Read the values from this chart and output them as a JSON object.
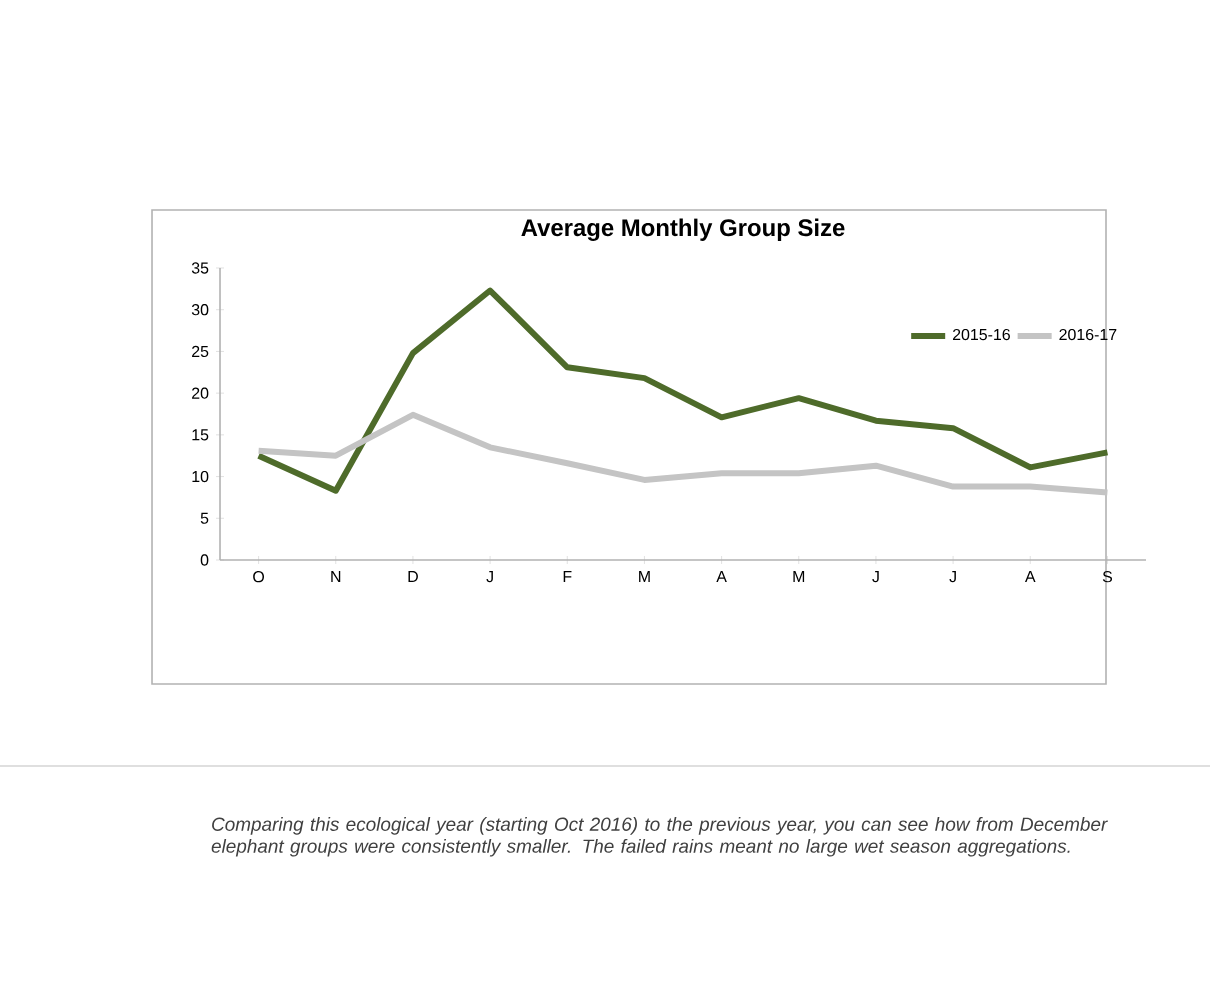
{
  "chart_data": {
    "type": "line",
    "title": "Average Monthly Group Size",
    "categories": [
      "O",
      "N",
      "D",
      "J",
      "F",
      "M",
      "A",
      "M",
      "J",
      "J",
      "A",
      "S"
    ],
    "series": [
      {
        "name": "2015-16",
        "color": "#4e6b2a",
        "values": [
          12.5,
          8.3,
          24.8,
          32.3,
          23.1,
          21.8,
          17.1,
          19.4,
          16.7,
          15.8,
          11.1,
          12.9
        ]
      },
      {
        "name": "2016-17",
        "color": "#c4c4c4",
        "values": [
          13.1,
          12.5,
          17.4,
          13.5,
          11.6,
          9.6,
          10.4,
          10.4,
          11.3,
          8.8,
          8.8,
          8.1
        ]
      }
    ],
    "ylim": [
      0,
      35
    ],
    "yticks": [
      0,
      5,
      10,
      15,
      20,
      25,
      30,
      35
    ],
    "grid": false,
    "legend": "top right",
    "marker": "none",
    "line_style": "solid",
    "annotations": [
      "Comparing this ecological year (starting Oct 2016) to the previous year, you can see how from December elephant groups were consistently smaller. The failed rains meant no large wet season aggregations."
    ]
  }
}
